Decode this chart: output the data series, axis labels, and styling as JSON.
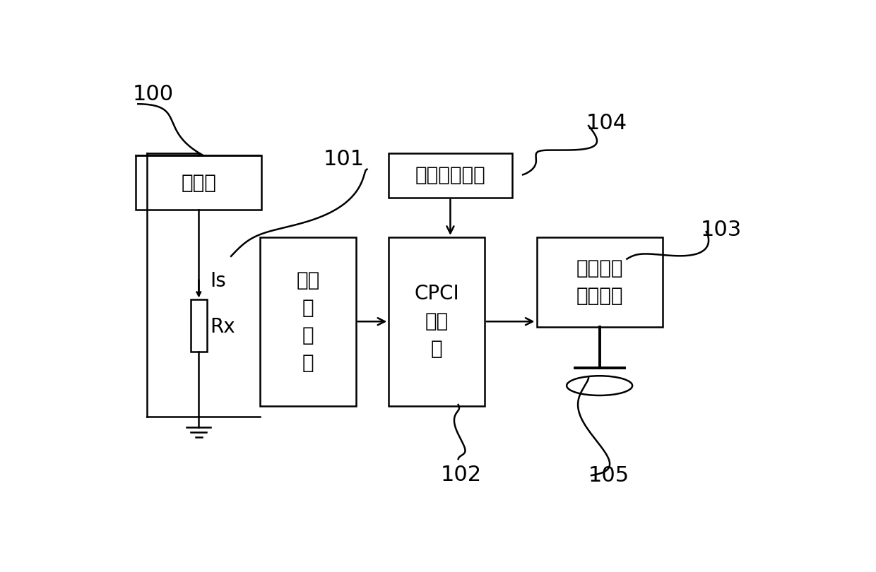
{
  "bg_color": "#ffffff",
  "figsize": [
    12.4,
    8.1
  ],
  "dpi": 100,
  "label_100": "100",
  "label_101": "101",
  "label_102": "102",
  "label_103": "103",
  "label_104": "104",
  "label_105": "105",
  "text_hengliuyuan": "恒流源",
  "text_xinhao": "信号\n调\n理\n卡",
  "text_cpci": "CPCI\n采集\n卡",
  "text_sensor": "温湿度传感器",
  "text_hmi": "人机信息\n交互平台",
  "text_Is": "Is",
  "text_Rx": "Rx",
  "hly": [
    48,
    160,
    230,
    100
  ],
  "xhao": [
    275,
    310,
    175,
    310
  ],
  "sensor": [
    510,
    155,
    225,
    82
  ],
  "cpci": [
    510,
    310,
    175,
    310
  ],
  "hmi": [
    780,
    310,
    230,
    165
  ]
}
